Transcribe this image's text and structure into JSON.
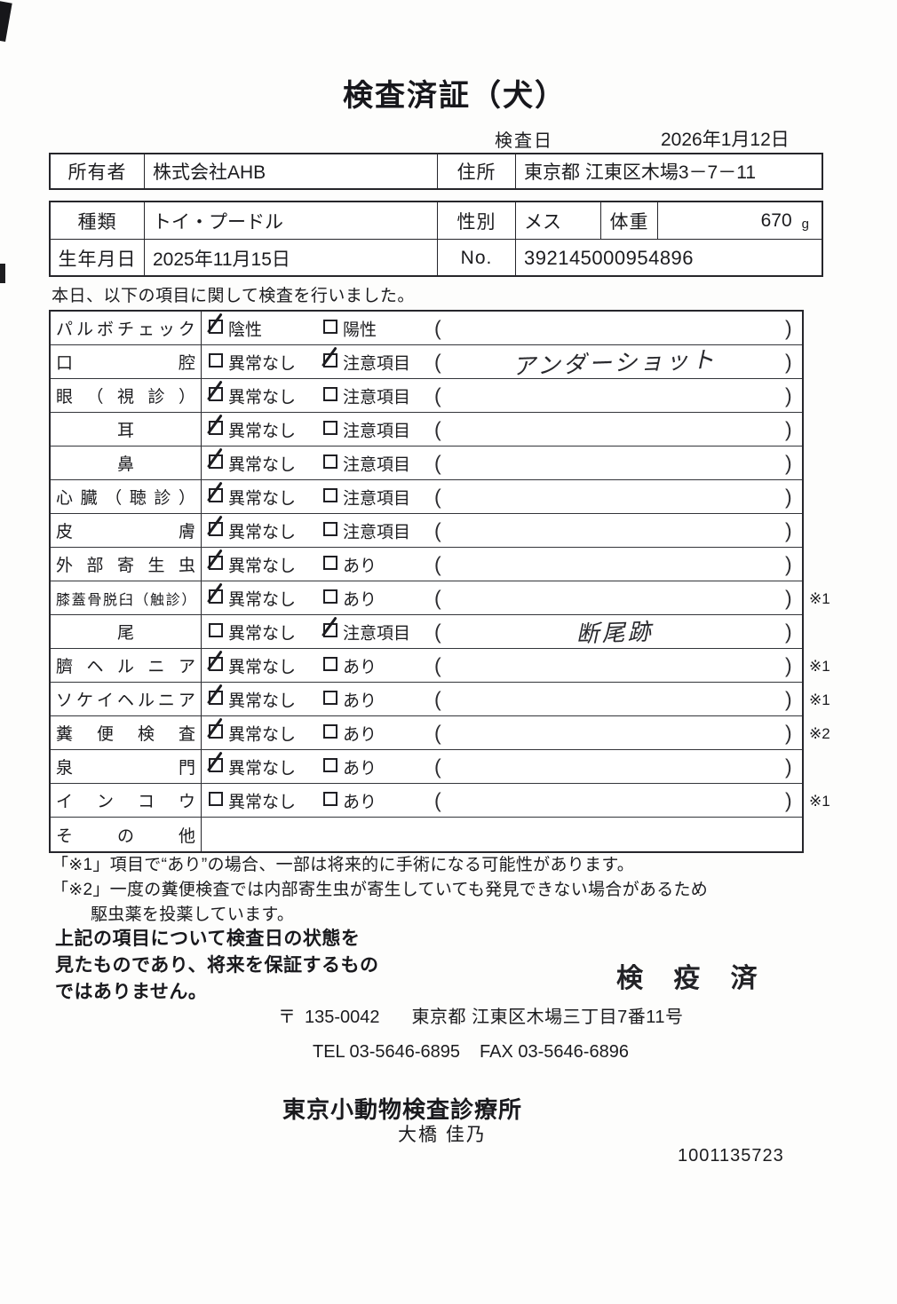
{
  "page": {
    "title": "検査済証（犬）",
    "inspection_date_label": "検査日",
    "inspection_date": "2026年1月12日"
  },
  "owner_table": {
    "owner_label": "所有者",
    "owner_value": "株式会社AHB",
    "address_label": "住所",
    "address_value": "東京都 江東区木場3－7－11"
  },
  "pet_table": {
    "breed_label": "種類",
    "breed_value": "トイ・プードル",
    "sex_label": "性別",
    "sex_value": "メス",
    "weight_label": "体重",
    "weight_value": "670",
    "weight_unit": "g",
    "birth_label": "生年月日",
    "birth_value": "2025年11月15日",
    "no_label": "No.",
    "no_value": "392145000954896"
  },
  "intro": "本日、以下の項目に関して検査を行いました。",
  "checklist": {
    "paren_open": "(",
    "paren_close": ")",
    "rows": [
      {
        "label": "パルボチェック",
        "opt1": "陰性",
        "opt1_checked": true,
        "opt2": "陽性",
        "opt2_checked": false,
        "note": "",
        "mark": "",
        "has_options": true
      },
      {
        "label": "口腔",
        "opt1": "異常なし",
        "opt1_checked": false,
        "opt2": "注意項目",
        "opt2_checked": true,
        "note": "アンダーショット",
        "mark": "",
        "has_options": true
      },
      {
        "label": "眼（視診）",
        "opt1": "異常なし",
        "opt1_checked": true,
        "opt2": "注意項目",
        "opt2_checked": false,
        "note": "",
        "mark": "",
        "has_options": true
      },
      {
        "label": "耳",
        "opt1": "異常なし",
        "opt1_checked": true,
        "opt2": "注意項目",
        "opt2_checked": false,
        "note": "",
        "mark": "",
        "has_options": true
      },
      {
        "label": "鼻",
        "opt1": "異常なし",
        "opt1_checked": true,
        "opt2": "注意項目",
        "opt2_checked": false,
        "note": "",
        "mark": "",
        "has_options": true
      },
      {
        "label": "心臓（聴診）",
        "opt1": "異常なし",
        "opt1_checked": true,
        "opt2": "注意項目",
        "opt2_checked": false,
        "note": "",
        "mark": "",
        "has_options": true
      },
      {
        "label": "皮膚",
        "opt1": "異常なし",
        "opt1_checked": true,
        "opt2": "注意項目",
        "opt2_checked": false,
        "note": "",
        "mark": "",
        "has_options": true
      },
      {
        "label": "外部寄生虫",
        "opt1": "異常なし",
        "opt1_checked": true,
        "opt2": "あり",
        "opt2_checked": false,
        "note": "",
        "mark": "",
        "has_options": true
      },
      {
        "label": "膝蓋骨脱臼（触診）",
        "opt1": "異常なし",
        "opt1_checked": true,
        "opt2": "あり",
        "opt2_checked": false,
        "note": "",
        "mark": "※1",
        "has_options": true
      },
      {
        "label": "尾",
        "opt1": "異常なし",
        "opt1_checked": false,
        "opt2": "注意項目",
        "opt2_checked": true,
        "note": "断尾跡",
        "mark": "",
        "has_options": true
      },
      {
        "label": "臍ヘルニア",
        "opt1": "異常なし",
        "opt1_checked": true,
        "opt2": "あり",
        "opt2_checked": false,
        "note": "",
        "mark": "※1",
        "has_options": true
      },
      {
        "label": "ソケイヘルニア",
        "opt1": "異常なし",
        "opt1_checked": true,
        "opt2": "あり",
        "opt2_checked": false,
        "note": "",
        "mark": "※1",
        "has_options": true
      },
      {
        "label": "糞便検査",
        "opt1": "異常なし",
        "opt1_checked": true,
        "opt2": "あり",
        "opt2_checked": false,
        "note": "",
        "mark": "※2",
        "has_options": true
      },
      {
        "label": "泉門",
        "opt1": "異常なし",
        "opt1_checked": true,
        "opt2": "あり",
        "opt2_checked": false,
        "note": "",
        "mark": "",
        "has_options": true
      },
      {
        "label": "インコウ",
        "opt1": "異常なし",
        "opt1_checked": false,
        "opt2": "あり",
        "opt2_checked": false,
        "note": "",
        "mark": "※1",
        "has_options": true
      },
      {
        "label": "その他",
        "opt1": "",
        "opt1_checked": false,
        "opt2": "",
        "opt2_checked": false,
        "note": "",
        "mark": "",
        "has_options": false
      }
    ]
  },
  "notes": [
    {
      "text": "「※1」項目で“あり”の場合、一部は将来的に手術になる可能性があります。",
      "indent": false
    },
    {
      "text": "「※2」一度の糞便検査では内部寄生虫が寄生していても発見できない場合があるため",
      "indent": false
    },
    {
      "text": "駆虫薬を投薬しています。",
      "indent": true
    }
  ],
  "disclaimer_lines": [
    "上記の項目について検査日の状態を",
    "見たものであり、将来を保証するもの",
    "ではありません。"
  ],
  "quarantine_stamp": "検 疫 済",
  "clinic": {
    "postal_mark": "〒",
    "postal_code": "135-0042",
    "address": "東京都 江東区木場三丁目7番11号",
    "tel": "TEL 03-5646-6895",
    "fax": "FAX 03-5646-6896",
    "name": "東京小動物検査診療所",
    "examiner": "大橋 佳乃",
    "serial": "1001135723"
  }
}
